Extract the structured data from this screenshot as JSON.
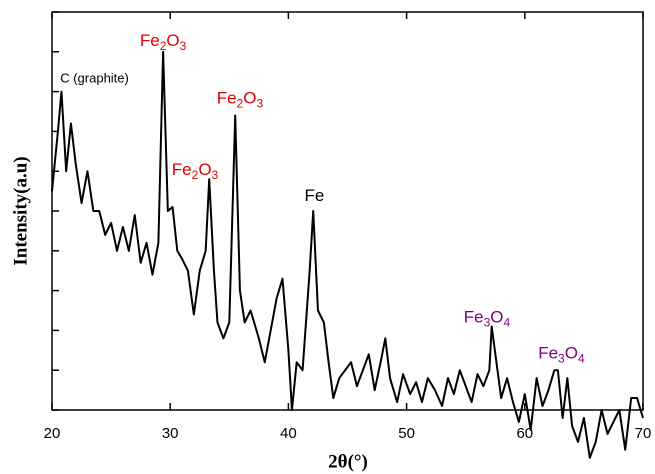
{
  "chart_data": {
    "type": "line",
    "x_label": "2θ(°)",
    "y_label": "Intensity(a.u)",
    "xlim": [
      20,
      70
    ],
    "xticks": [
      20,
      30,
      40,
      50,
      60,
      70
    ],
    "ylim": [
      0,
      100
    ],
    "yticks": [
      0,
      10,
      20,
      30,
      40,
      50,
      60,
      70,
      80,
      90,
      100
    ],
    "y_tick_labels": false,
    "series": [
      {
        "color": "#000000",
        "x": [
          20,
          20.5,
          20.8,
          21.2,
          21.6,
          22,
          22.5,
          23,
          23.5,
          24,
          24.5,
          25,
          25.5,
          26,
          26.5,
          27,
          27.5,
          28,
          28.5,
          29,
          29.4,
          29.8,
          30.2,
          30.6,
          31,
          31.5,
          32,
          32.5,
          33,
          33.3,
          33.7,
          34,
          34.5,
          35,
          35.5,
          35.9,
          36.3,
          36.8,
          37.5,
          38,
          38.5,
          39,
          39.5,
          40,
          40.3,
          40.7,
          41.2,
          41.8,
          42.1,
          42.5,
          43,
          43.4,
          43.8,
          44.3,
          44.8,
          45.3,
          45.8,
          46.3,
          46.8,
          47.3,
          47.8,
          48.2,
          48.6,
          49.2,
          49.7,
          50.3,
          50.8,
          51.3,
          51.8,
          52.4,
          53,
          53.5,
          54,
          54.5,
          55,
          55.5,
          56,
          56.5,
          57,
          57.2,
          57.6,
          58,
          58.5,
          59,
          59.5,
          60,
          60.5,
          61,
          61.5,
          62,
          62.5,
          62.8,
          63.2,
          63.6,
          64,
          64.5,
          65,
          65.5,
          66,
          66.5,
          67,
          67.5,
          68,
          68.5,
          69,
          69.5,
          70
        ],
        "values": [
          55,
          70,
          80,
          60,
          72,
          62,
          52,
          60,
          50,
          50,
          44,
          47,
          40,
          46,
          40,
          49,
          37,
          42,
          34,
          42,
          90,
          50,
          51,
          40,
          38,
          35,
          24,
          35,
          40,
          58,
          35,
          22,
          18,
          22,
          74,
          30,
          22,
          25,
          18,
          12,
          20,
          28,
          33,
          15,
          0,
          12,
          10,
          35,
          50,
          25,
          22,
          12,
          3,
          8,
          10,
          12,
          6,
          10,
          14,
          5,
          12,
          18,
          8,
          2,
          9,
          4,
          7,
          2,
          8,
          5,
          1,
          8,
          4,
          10,
          6,
          2,
          9,
          6,
          10,
          21,
          12,
          3,
          8,
          2,
          -3,
          4,
          -5,
          8,
          1,
          5,
          10,
          10,
          -2,
          8,
          -4,
          -8,
          -2,
          -12,
          -8,
          0,
          -6,
          -3,
          0,
          -10,
          3,
          3,
          -2
        ]
      }
    ],
    "annotations": [
      {
        "text": [
          "C (graphite)"
        ],
        "x": 23.6,
        "y": 83,
        "color": "#000000"
      },
      {
        "text": [
          "Fe",
          "2",
          "O",
          "3"
        ],
        "x": 29.4,
        "y": 92.5,
        "color": "#e00000"
      },
      {
        "text": [
          "Fe",
          "2",
          "O",
          "3"
        ],
        "x": 35.9,
        "y": 78,
        "color": "#e00000"
      },
      {
        "text": [
          "Fe",
          "2",
          "O",
          "3"
        ],
        "x": 32.1,
        "y": 60,
        "color": "#e00000"
      },
      {
        "text": [
          "Fe"
        ],
        "x": 42.2,
        "y": 53.5,
        "color": "#000000"
      },
      {
        "text": [
          "Fe",
          "3",
          "O",
          "4"
        ],
        "x": 56.8,
        "y": 23,
        "color": "#800080"
      },
      {
        "text": [
          "Fe",
          "3",
          "O",
          "4"
        ],
        "x": 63.1,
        "y": 14,
        "color": "#800080"
      }
    ]
  }
}
